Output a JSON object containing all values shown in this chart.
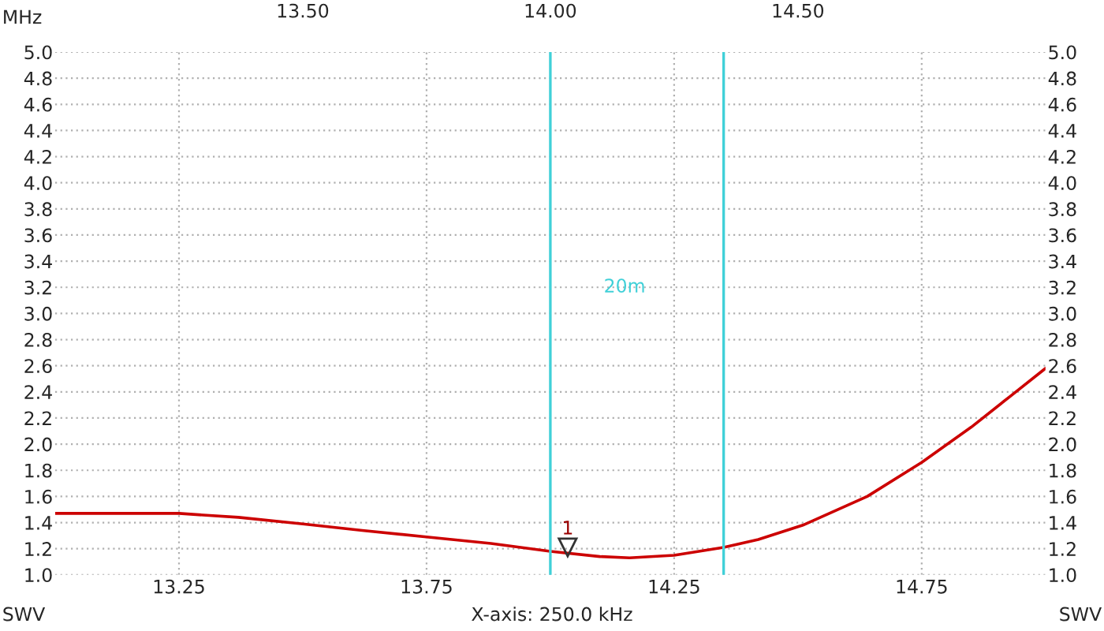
{
  "chart_data": {
    "type": "line",
    "xlabel": "MHz",
    "ylabel": "SWV",
    "y2label": "SWV",
    "x": [
      13.0,
      13.11,
      13.21,
      13.25,
      13.37,
      13.5,
      13.62,
      13.75,
      13.88,
      14.0,
      14.1,
      14.16,
      14.25,
      14.35,
      14.42,
      14.51,
      14.64,
      14.75,
      14.85,
      14.93,
      15.0
    ],
    "series": [
      {
        "color": "#cc0000",
        "values": [
          1.47,
          1.47,
          1.47,
          1.47,
          1.44,
          1.39,
          1.34,
          1.29,
          1.24,
          1.18,
          1.14,
          1.13,
          1.15,
          1.21,
          1.27,
          1.38,
          1.6,
          1.86,
          2.13,
          2.37,
          2.58
        ]
      }
    ],
    "xlim": [
      13.0,
      15.0
    ],
    "xticks": [
      13.25,
      13.75,
      14.25,
      14.75
    ],
    "x2lim": [
      13.0,
      15.0
    ],
    "x2ticks": [
      {
        "value": 13.5,
        "label": "13.50"
      },
      {
        "value": 14.0,
        "label": "14.00"
      },
      {
        "value": 14.5,
        "label": "14.50"
      }
    ],
    "ylim": [
      1.0,
      5.0
    ],
    "yticks": [
      {
        "value": 1.0,
        "label": "1.0"
      },
      {
        "value": 1.2,
        "label": "1.2"
      },
      {
        "value": 1.4,
        "label": "1.4"
      },
      {
        "value": 1.6,
        "label": "1.6"
      },
      {
        "value": 1.8,
        "label": "1.8"
      },
      {
        "value": 2.0,
        "label": "2.0"
      },
      {
        "value": 2.2,
        "label": "2.2"
      },
      {
        "value": 2.4,
        "label": "2.4"
      },
      {
        "value": 2.6,
        "label": "2.6"
      },
      {
        "value": 2.8,
        "label": "2.8"
      },
      {
        "value": 3.0,
        "label": "3.0"
      },
      {
        "value": 3.2,
        "label": "3.2"
      },
      {
        "value": 3.4,
        "label": "3.4"
      },
      {
        "value": 3.6,
        "label": "3.6"
      },
      {
        "value": 3.8,
        "label": "3.8"
      },
      {
        "value": 4.0,
        "label": "4.0"
      },
      {
        "value": 4.2,
        "label": "4.2"
      },
      {
        "value": 4.4,
        "label": "4.4"
      },
      {
        "value": 4.6,
        "label": "4.6"
      },
      {
        "value": 4.8,
        "label": "4.8"
      },
      {
        "value": 5.0,
        "label": "5.0"
      }
    ],
    "y2lim": [
      1.0,
      5.0
    ],
    "y2ticks": [
      {
        "value": 1.0,
        "label": "1.0"
      },
      {
        "value": 1.2,
        "label": "1.2"
      },
      {
        "value": 1.4,
        "label": "1.4"
      },
      {
        "value": 1.6,
        "label": "1.6"
      },
      {
        "value": 1.8,
        "label": "1.8"
      },
      {
        "value": 2.0,
        "label": "2.0"
      },
      {
        "value": 2.2,
        "label": "2.2"
      },
      {
        "value": 2.4,
        "label": "2.4"
      },
      {
        "value": 2.6,
        "label": "2.6"
      },
      {
        "value": 2.8,
        "label": "2.8"
      },
      {
        "value": 3.0,
        "label": "3.0"
      },
      {
        "value": 3.2,
        "label": "3.2"
      },
      {
        "value": 3.4,
        "label": "3.4"
      },
      {
        "value": 3.6,
        "label": "3.6"
      },
      {
        "value": 3.8,
        "label": "3.8"
      },
      {
        "value": 4.0,
        "label": "4.0"
      },
      {
        "value": 4.2,
        "label": "4.2"
      },
      {
        "value": 4.4,
        "label": "4.4"
      },
      {
        "value": 4.6,
        "label": "4.6"
      },
      {
        "value": 4.8,
        "label": "4.8"
      },
      {
        "value": 5.0,
        "label": "5.0"
      }
    ],
    "ref_lines": [
      {
        "axis": "x",
        "value": 14.0,
        "label": "20m",
        "color": "#40d0d8"
      },
      {
        "axis": "x",
        "value": 14.35,
        "color": "#40d0d8"
      }
    ],
    "annotations": [
      {
        "text": "1",
        "x": 14.035,
        "y": 1.16
      },
      "X-axis: 250.0 kHz"
    ],
    "grid": true,
    "legend": false,
    "marker": "none",
    "line_style": "solid"
  }
}
